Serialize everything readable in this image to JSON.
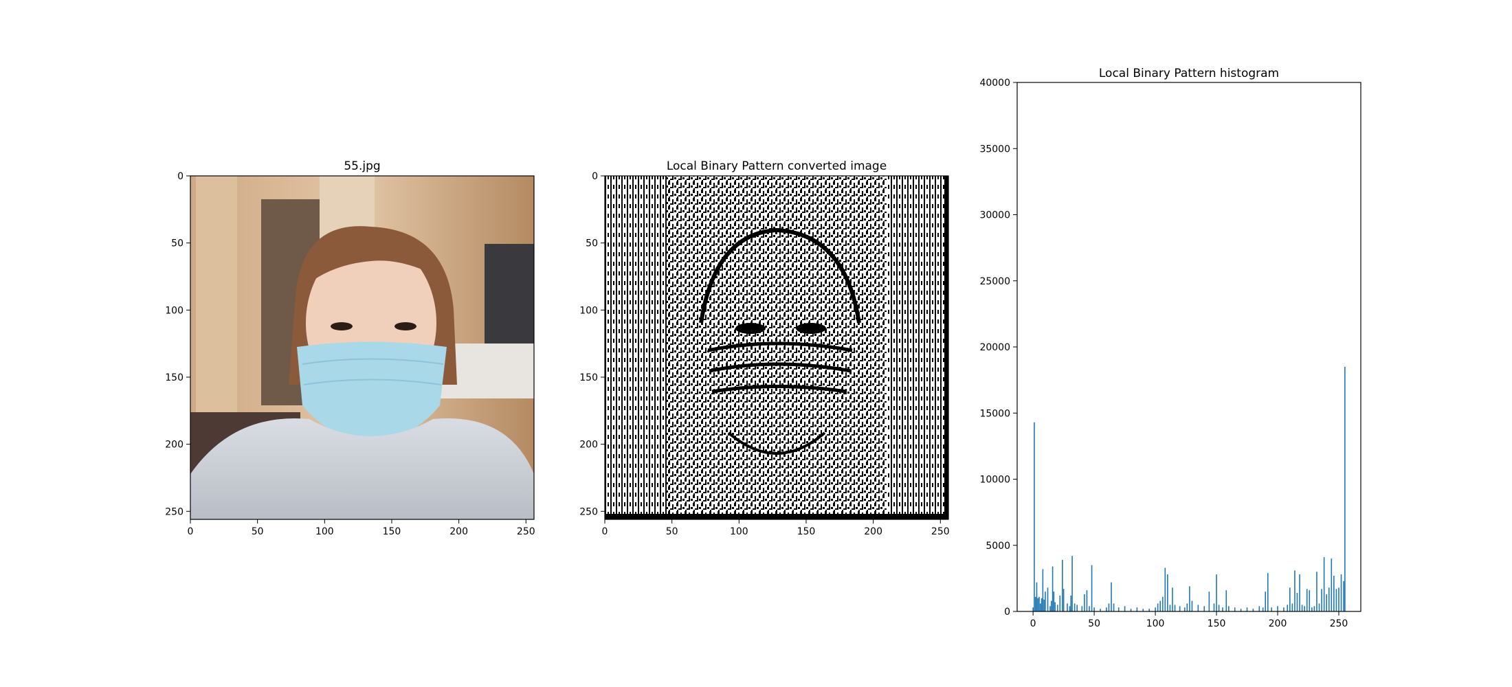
{
  "figure": {
    "panels": [
      {
        "title": "55.jpg",
        "kind": "image",
        "subject": "photo of a person wearing a light-blue surgical face mask in a hotel room"
      },
      {
        "title": "Local Binary Pattern converted image",
        "kind": "image",
        "subject": "black and white LBP texture map of the same face photo"
      },
      {
        "title": "Local Binary Pattern histogram",
        "kind": "chart"
      }
    ]
  },
  "chart_data": [
    {
      "type": "image",
      "title": "55.jpg",
      "x_ticks": [
        0,
        50,
        100,
        150,
        200,
        250
      ],
      "y_ticks": [
        0,
        50,
        100,
        150,
        200,
        250
      ],
      "xlim": [
        0,
        256
      ],
      "ylim": [
        256,
        0
      ]
    },
    {
      "type": "image",
      "title": "Local Binary Pattern converted image",
      "x_ticks": [
        0,
        50,
        100,
        150,
        200,
        250
      ],
      "y_ticks": [
        0,
        50,
        100,
        150,
        200,
        250
      ],
      "xlim": [
        0,
        256
      ],
      "ylim": [
        256,
        0
      ]
    },
    {
      "type": "bar",
      "title": "Local Binary Pattern histogram",
      "xlabel": "",
      "ylabel": "",
      "xlim": [
        -13,
        268
      ],
      "ylim": [
        0,
        40000
      ],
      "x_ticks": [
        0,
        50,
        100,
        150,
        200,
        250
      ],
      "y_ticks": [
        0,
        5000,
        10000,
        15000,
        20000,
        25000,
        30000,
        35000,
        40000
      ],
      "grid": false,
      "color": "#1f77b4",
      "x": [
        0,
        1,
        2,
        3,
        4,
        5,
        6,
        7,
        8,
        9,
        10,
        12,
        14,
        15,
        16,
        17,
        18,
        20,
        22,
        24,
        25,
        28,
        30,
        31,
        32,
        34,
        36,
        40,
        42,
        44,
        46,
        48,
        50,
        55,
        60,
        62,
        64,
        66,
        70,
        75,
        80,
        85,
        90,
        95,
        100,
        102,
        104,
        106,
        108,
        110,
        112,
        114,
        116,
        120,
        124,
        126,
        128,
        130,
        135,
        140,
        144,
        148,
        150,
        152,
        155,
        158,
        160,
        165,
        170,
        175,
        180,
        185,
        188,
        190,
        192,
        195,
        200,
        205,
        208,
        210,
        212,
        214,
        216,
        218,
        220,
        222,
        224,
        226,
        228,
        230,
        232,
        234,
        236,
        238,
        240,
        242,
        244,
        246,
        248,
        250,
        252,
        254,
        255
      ],
      "values": [
        300,
        14300,
        1100,
        2200,
        1000,
        1100,
        600,
        1000,
        3200,
        900,
        1500,
        1800,
        400,
        800,
        3400,
        1500,
        700,
        500,
        1200,
        3900,
        1700,
        600,
        400,
        1200,
        4200,
        600,
        500,
        400,
        1300,
        1600,
        400,
        3500,
        300,
        200,
        300,
        600,
        2200,
        600,
        300,
        400,
        200,
        300,
        200,
        200,
        300,
        600,
        800,
        1100,
        3300,
        2800,
        500,
        1800,
        500,
        400,
        300,
        600,
        1900,
        800,
        500,
        400,
        1500,
        600,
        2800,
        500,
        300,
        1600,
        400,
        300,
        200,
        300,
        200,
        400,
        300,
        1500,
        2900,
        300,
        400,
        300,
        500,
        1800,
        600,
        3100,
        1400,
        2800,
        500,
        400,
        1700,
        1600,
        300,
        400,
        3000,
        600,
        1700,
        4100,
        1300,
        1800,
        4000,
        2700,
        1700,
        1800,
        2800,
        2300,
        18500
      ]
    }
  ]
}
